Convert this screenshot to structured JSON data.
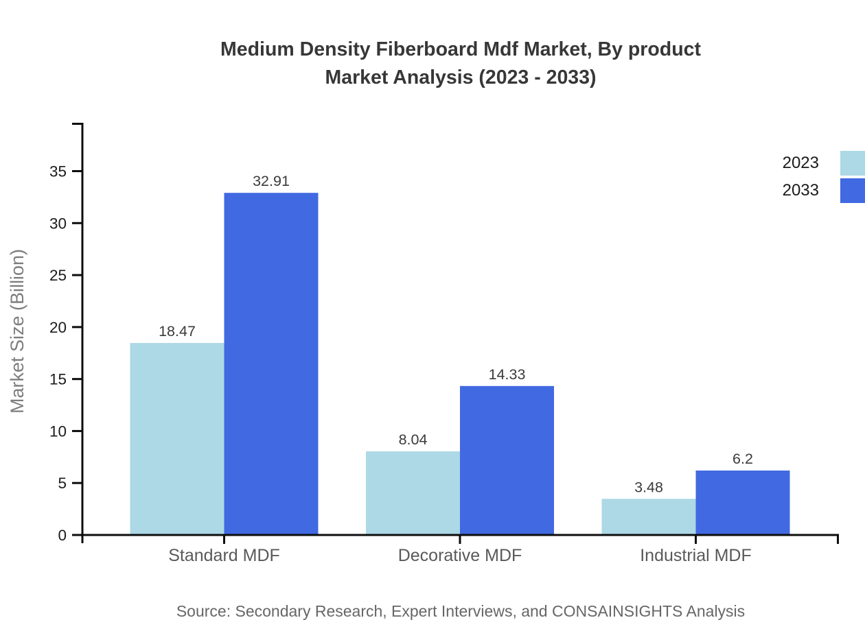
{
  "colors": {
    "background": "#ffffff",
    "axis": "#0d0d0d",
    "tick_label": "#1a1a1a",
    "value_label": "#3a3a3a",
    "category_label": "#595959",
    "axis_label": "#7d7d7d",
    "title_text": "#373737",
    "source_text": "#666666"
  },
  "chart_data": {
    "type": "bar",
    "title": "Medium Density Fiberboard Mdf Market, By product Market Analysis (2023 - 2033)",
    "title_lines": [
      "Medium Density Fiberboard Mdf Market, By product",
      "Market Analysis (2023 - 2033)"
    ],
    "categories": [
      "Standard MDF",
      "Decorative MDF",
      "Industrial MDF"
    ],
    "series": [
      {
        "name": "2023",
        "color": "#ADD8E6",
        "values": [
          18.47,
          8.04,
          3.48
        ]
      },
      {
        "name": "2033",
        "color": "#4169E1",
        "values": [
          32.91,
          14.33,
          6.2
        ]
      }
    ],
    "xlabel": "",
    "ylabel": "Market Size (Billion)",
    "yticks": [
      0,
      5,
      10,
      15,
      20,
      25,
      30,
      35
    ],
    "ylim": [
      0,
      39.6
    ],
    "grid": false,
    "legend_position": "right-top",
    "source": "Source: Secondary Research, Expert Interviews, and CONSAINSIGHTS Analysis"
  }
}
